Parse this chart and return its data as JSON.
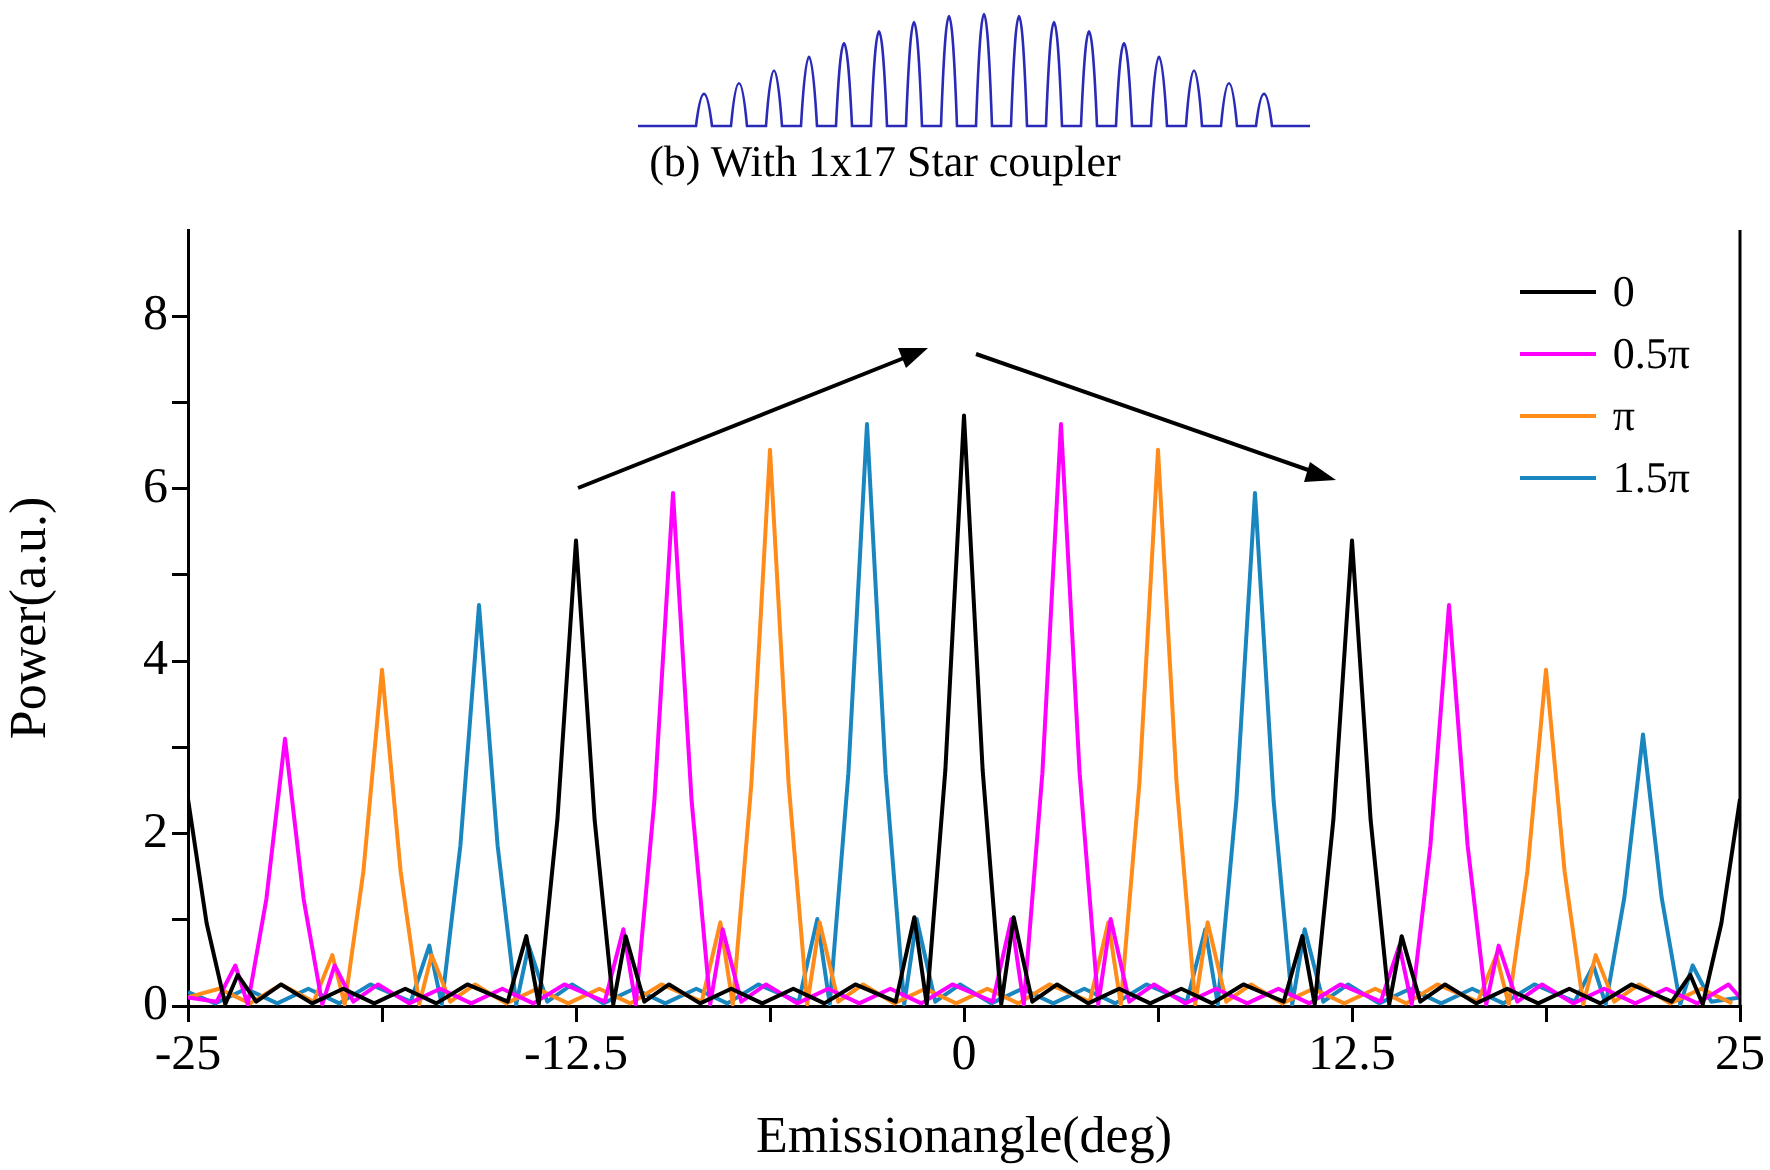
{
  "chart_data": {
    "type": "line",
    "title": "(b) With 1x17 Star coupler",
    "xlabel": "Emissionangle(deg)",
    "ylabel": "Power(a.u.)",
    "xlim": [
      -25,
      25
    ],
    "xticks": [
      -25,
      {
        "value": -18.75,
        "label": null
      },
      -12.5,
      {
        "value": -6.25,
        "label": null
      },
      0,
      {
        "value": 6.25,
        "label": null
      },
      12.5,
      {
        "value": 18.75,
        "label": null
      },
      25
    ],
    "ylim": [
      0,
      9
    ],
    "yticks": [
      0,
      {
        "value": 1,
        "label": null
      },
      2,
      {
        "value": 3,
        "label": null
      },
      4,
      {
        "value": 5,
        "label": null
      },
      6,
      {
        "value": 7,
        "label": null
      },
      8
    ],
    "grid": false,
    "legend": "top right",
    "marker": "none",
    "line_style": "solid",
    "series": [
      {
        "name": "0",
        "color": "#000000",
        "x": [
          -25,
          -24.4,
          -23.8,
          -23.4,
          -22.8,
          -22,
          -21,
          -20,
          -19,
          -18,
          -17,
          -16,
          -14.7,
          -14.1,
          -13.7,
          -13.1,
          -12.5,
          -11.9,
          -11.3,
          -10.9,
          -10.3,
          -9.5,
          -8.5,
          -7.5,
          -6.5,
          -5.5,
          -4.5,
          -3.5,
          -2.2,
          -1.6,
          -1.2,
          -0.6,
          0,
          0.6,
          1.2,
          1.6,
          2.2,
          3,
          4,
          5,
          6,
          7,
          8,
          9,
          10.3,
          10.9,
          11.3,
          11.9,
          12.5,
          13.1,
          13.7,
          14.1,
          14.7,
          15.5,
          16.5,
          17.5,
          18.5,
          19.5,
          20.5,
          21.5,
          22.8,
          23.4,
          23.8,
          24.4,
          25
        ],
        "values": [
          2.4,
          0.96,
          0.02,
          0.36,
          0.05,
          0.25,
          0.03,
          0.2,
          0.03,
          0.2,
          0.03,
          0.25,
          0.05,
          0.81,
          0.02,
          2.16,
          5.4,
          2.16,
          0.02,
          0.81,
          0.05,
          0.25,
          0.03,
          0.2,
          0.03,
          0.2,
          0.03,
          0.25,
          0.05,
          1.03,
          0.02,
          2.74,
          6.85,
          2.74,
          0.02,
          1.03,
          0.05,
          0.25,
          0.03,
          0.2,
          0.03,
          0.2,
          0.03,
          0.25,
          0.05,
          0.81,
          0.02,
          2.16,
          5.4,
          2.16,
          0.02,
          0.81,
          0.05,
          0.25,
          0.03,
          0.2,
          0.03,
          0.2,
          0.03,
          0.25,
          0.05,
          0.36,
          0.02,
          0.96,
          2.4
        ]
      },
      {
        "name": "0.5π",
        "color": "#ff00ff",
        "x": [
          -25,
          -24.075,
          -23.475,
          -23.075,
          -22.475,
          -21.875,
          -21.275,
          -20.675,
          -20.275,
          -19.675,
          -18.875,
          -17.875,
          -16.875,
          -15.875,
          -14.875,
          -13.875,
          -12.875,
          -11.575,
          -10.975,
          -10.575,
          -9.975,
          -9.375,
          -8.775,
          -8.175,
          -7.775,
          -7.175,
          -6.375,
          -5.375,
          -4.375,
          -3.375,
          -2.375,
          -1.375,
          -0.375,
          0.925,
          1.525,
          1.925,
          2.525,
          3.125,
          3.725,
          4.325,
          4.725,
          5.325,
          6.125,
          7.125,
          8.125,
          9.125,
          10.125,
          11.125,
          12.125,
          13.425,
          14.025,
          14.425,
          15.025,
          15.625,
          16.225,
          16.825,
          17.225,
          17.825,
          18.625,
          19.625,
          20.625,
          21.625,
          22.625,
          23.625,
          24.625,
          25
        ],
        "values": [
          0.1,
          0.05,
          0.47,
          0.02,
          1.24,
          3.1,
          1.24,
          0.02,
          0.47,
          0.05,
          0.25,
          0.03,
          0.2,
          0.03,
          0.2,
          0.03,
          0.25,
          0.05,
          0.89,
          0.02,
          2.38,
          5.95,
          2.38,
          0.02,
          0.89,
          0.05,
          0.25,
          0.03,
          0.2,
          0.03,
          0.2,
          0.03,
          0.25,
          0.05,
          1.01,
          0.02,
          2.7,
          6.75,
          2.7,
          0.02,
          1.01,
          0.05,
          0.25,
          0.03,
          0.2,
          0.03,
          0.2,
          0.03,
          0.25,
          0.05,
          0.7,
          0.02,
          1.86,
          4.65,
          1.86,
          0.02,
          0.7,
          0.05,
          0.25,
          0.03,
          0.2,
          0.03,
          0.2,
          0.03,
          0.25,
          0.1
        ]
      },
      {
        "name": "π",
        "color": "#ff8c1a",
        "x": [
          -25,
          -24,
          -23,
          -22,
          -20.95,
          -20.35,
          -19.95,
          -19.35,
          -18.75,
          -18.15,
          -17.55,
          -17.15,
          -16.55,
          -15.75,
          -14.75,
          -13.75,
          -12.75,
          -11.75,
          -10.75,
          -9.75,
          -8.45,
          -7.85,
          -7.45,
          -6.85,
          -6.25,
          -5.65,
          -5.05,
          -4.65,
          -4.05,
          -3.25,
          -2.25,
          -1.25,
          -0.25,
          0.75,
          1.75,
          2.75,
          4.05,
          4.65,
          5.05,
          5.65,
          6.25,
          6.85,
          7.45,
          7.85,
          8.45,
          9.25,
          10.25,
          11.25,
          12.25,
          13.25,
          14.25,
          15.25,
          16.55,
          17.15,
          17.55,
          18.15,
          18.75,
          19.35,
          19.95,
          20.35,
          20.95,
          21.75,
          22.75,
          23.75,
          24.75
        ],
        "values": [
          0.1,
          0.2,
          0.03,
          0.25,
          0.05,
          0.59,
          0.02,
          1.56,
          3.9,
          1.56,
          0.02,
          0.59,
          0.05,
          0.25,
          0.03,
          0.2,
          0.03,
          0.2,
          0.03,
          0.25,
          0.05,
          0.97,
          0.02,
          2.58,
          6.45,
          2.58,
          0.02,
          0.97,
          0.05,
          0.25,
          0.03,
          0.2,
          0.03,
          0.2,
          0.03,
          0.25,
          0.05,
          0.97,
          0.02,
          2.58,
          6.45,
          2.58,
          0.02,
          0.97,
          0.05,
          0.25,
          0.03,
          0.2,
          0.03,
          0.2,
          0.03,
          0.25,
          0.05,
          0.59,
          0.02,
          1.56,
          3.9,
          1.56,
          0.02,
          0.59,
          0.05,
          0.25,
          0.03,
          0.2,
          0.03
        ]
      },
      {
        "name": "1.5π",
        "color": "#1a86c0",
        "x": [
          -25,
          -24.125,
          -23.125,
          -22.125,
          -21.125,
          -20.125,
          -19.125,
          -17.825,
          -17.225,
          -16.825,
          -16.225,
          -15.625,
          -15.025,
          -14.425,
          -14.025,
          -13.425,
          -12.625,
          -11.625,
          -10.625,
          -9.625,
          -8.625,
          -7.625,
          -6.625,
          -5.325,
          -4.725,
          -4.325,
          -3.725,
          -3.125,
          -2.525,
          -1.925,
          -1.525,
          -0.925,
          -0.125,
          0.875,
          1.875,
          2.875,
          3.875,
          4.875,
          5.875,
          7.175,
          7.775,
          8.175,
          8.775,
          9.375,
          9.975,
          10.575,
          10.975,
          11.575,
          12.375,
          13.375,
          14.375,
          15.375,
          16.375,
          17.375,
          18.375,
          19.675,
          20.275,
          20.675,
          21.275,
          21.875,
          22.475,
          23.075,
          23.475,
          24.075,
          25
        ],
        "values": [
          0.16,
          0.03,
          0.2,
          0.03,
          0.2,
          0.03,
          0.25,
          0.05,
          0.7,
          0.02,
          1.86,
          4.65,
          1.86,
          0.02,
          0.7,
          0.05,
          0.25,
          0.03,
          0.2,
          0.03,
          0.2,
          0.03,
          0.25,
          0.05,
          1.01,
          0.02,
          2.7,
          6.75,
          2.7,
          0.02,
          1.01,
          0.05,
          0.25,
          0.03,
          0.2,
          0.03,
          0.2,
          0.03,
          0.25,
          0.05,
          0.89,
          0.02,
          2.38,
          5.95,
          2.38,
          0.02,
          0.89,
          0.05,
          0.25,
          0.03,
          0.2,
          0.03,
          0.2,
          0.03,
          0.25,
          0.05,
          0.47,
          0.02,
          1.26,
          3.15,
          1.26,
          0.02,
          0.47,
          0.05,
          0.1
        ]
      }
    ]
  }
}
